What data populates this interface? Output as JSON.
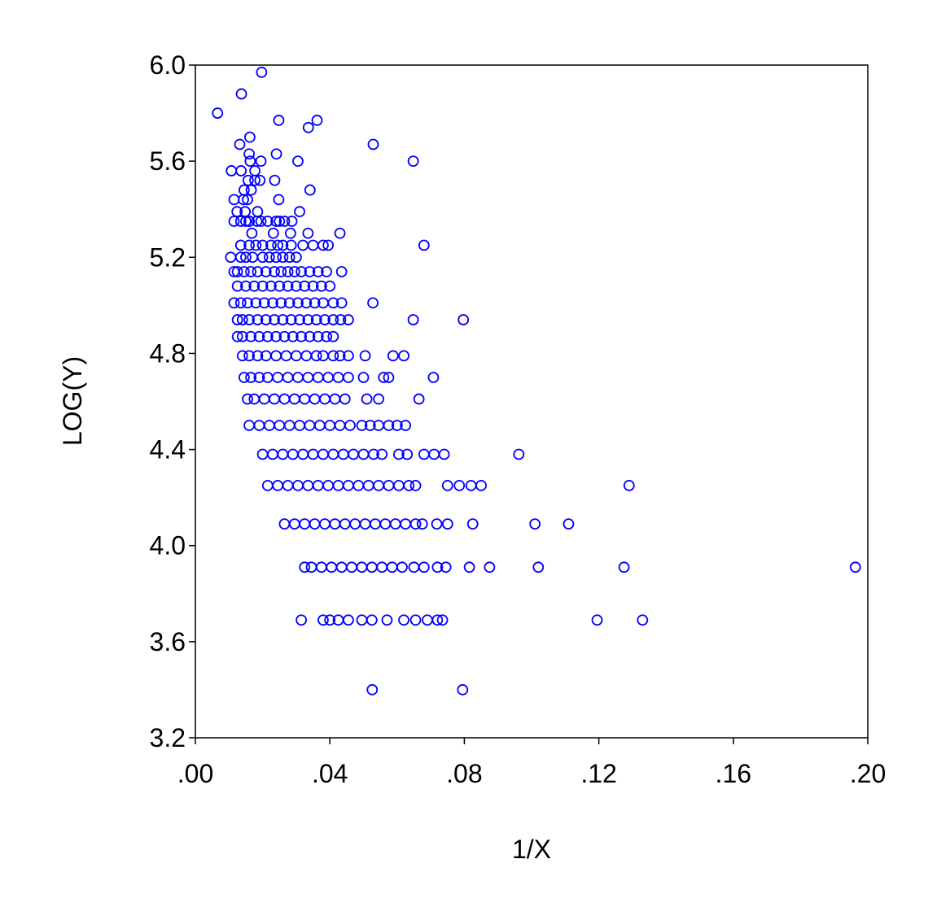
{
  "chart_data": {
    "type": "scatter",
    "title": "",
    "xlabel": "1/X",
    "ylabel": "LOG(Y)",
    "xlim": [
      0.0,
      0.2
    ],
    "ylim": [
      3.2,
      6.0
    ],
    "x_ticks": [
      0.0,
      0.04,
      0.08,
      0.12,
      0.16,
      0.2
    ],
    "x_tick_labels": [
      ".00",
      ".04",
      ".08",
      ".12",
      ".16",
      ".20"
    ],
    "y_ticks": [
      3.2,
      3.6,
      4.0,
      4.4,
      4.8,
      5.2,
      5.6,
      6.0
    ],
    "y_tick_labels": [
      "3.2",
      "3.6",
      "4.0",
      "4.4",
      "4.8",
      "5.2",
      "5.6",
      "6.0"
    ],
    "grid": false,
    "legend": "none",
    "marker": "open-circle",
    "marker_color": "#0000ff",
    "series": [
      {
        "x": [
          0.0066,
          0.0137,
          0.0197,
          0.0248,
          0.0336,
          0.0362,
          0.0529,
          0.0648,
          0.0132,
          0.016,
          0.0162,
          0.0241,
          0.0107,
          0.0136,
          0.0157,
          0.0177,
          0.0195,
          0.0305,
          0.0163,
          0.0177,
          0.0115,
          0.0145,
          0.0155,
          0.0192,
          0.0236,
          0.0341,
          0.0143,
          0.0166,
          0.0248,
          0.0124,
          0.0148,
          0.016,
          0.025,
          0.015,
          0.0185,
          0.031,
          0.0115,
          0.0135,
          0.016,
          0.0183,
          0.0195,
          0.0215,
          0.024,
          0.0265,
          0.0287,
          0.0168,
          0.0232,
          0.0283,
          0.0335,
          0.043,
          0.0135,
          0.016,
          0.018,
          0.02,
          0.0225,
          0.0245,
          0.026,
          0.0285,
          0.032,
          0.035,
          0.038,
          0.0395,
          0.068,
          0.0105,
          0.0135,
          0.015,
          0.017,
          0.02,
          0.022,
          0.024,
          0.026,
          0.028,
          0.03,
          0.0115,
          0.0125,
          0.0145,
          0.0165,
          0.0185,
          0.021,
          0.0235,
          0.0255,
          0.0275,
          0.0295,
          0.0315,
          0.034,
          0.0365,
          0.039,
          0.0435,
          0.0125,
          0.015,
          0.0175,
          0.02,
          0.0225,
          0.025,
          0.0275,
          0.03,
          0.0325,
          0.035,
          0.0375,
          0.04,
          0.0115,
          0.0135,
          0.0155,
          0.018,
          0.0205,
          0.023,
          0.0255,
          0.028,
          0.0305,
          0.033,
          0.0355,
          0.038,
          0.041,
          0.0435,
          0.0528,
          0.0125,
          0.014,
          0.016,
          0.0185,
          0.021,
          0.0235,
          0.026,
          0.0285,
          0.031,
          0.0335,
          0.036,
          0.0385,
          0.041,
          0.0432,
          0.0455,
          0.0648,
          0.0797,
          0.0125,
          0.014,
          0.0165,
          0.019,
          0.0215,
          0.024,
          0.0265,
          0.029,
          0.0315,
          0.034,
          0.0365,
          0.039,
          0.041,
          0.014,
          0.016,
          0.0185,
          0.021,
          0.024,
          0.027,
          0.03,
          0.033,
          0.036,
          0.038,
          0.041,
          0.043,
          0.0455,
          0.0505,
          0.0588,
          0.062,
          0.0145,
          0.0165,
          0.019,
          0.0215,
          0.0245,
          0.0275,
          0.0305,
          0.0335,
          0.0365,
          0.0395,
          0.0425,
          0.0455,
          0.05,
          0.056,
          0.0575,
          0.0708,
          0.0155,
          0.0175,
          0.0205,
          0.0235,
          0.0265,
          0.0295,
          0.0325,
          0.0355,
          0.0385,
          0.0415,
          0.0445,
          0.051,
          0.0545,
          0.0665,
          0.016,
          0.019,
          0.022,
          0.025,
          0.028,
          0.031,
          0.034,
          0.037,
          0.04,
          0.043,
          0.046,
          0.0495,
          0.052,
          0.0545,
          0.0575,
          0.06,
          0.0625,
          0.02,
          0.023,
          0.026,
          0.029,
          0.032,
          0.035,
          0.038,
          0.041,
          0.044,
          0.047,
          0.05,
          0.053,
          0.0555,
          0.0605,
          0.063,
          0.068,
          0.071,
          0.074,
          0.0962,
          0.0215,
          0.0245,
          0.0275,
          0.0305,
          0.0335,
          0.0365,
          0.0395,
          0.0425,
          0.0455,
          0.0485,
          0.0515,
          0.0545,
          0.0575,
          0.0605,
          0.0635,
          0.0655,
          0.075,
          0.0785,
          0.082,
          0.085,
          0.129,
          0.0265,
          0.0295,
          0.0325,
          0.0355,
          0.0385,
          0.0415,
          0.0445,
          0.0475,
          0.0505,
          0.0535,
          0.0565,
          0.0595,
          0.0625,
          0.0655,
          0.0675,
          0.0718,
          0.075,
          0.0825,
          0.101,
          0.111,
          0.0325,
          0.0345,
          0.0375,
          0.0405,
          0.0435,
          0.0465,
          0.0495,
          0.0525,
          0.0555,
          0.0585,
          0.0615,
          0.065,
          0.068,
          0.072,
          0.0745,
          0.0815,
          0.0875,
          0.102,
          0.1275,
          0.1963,
          0.0315,
          0.038,
          0.04,
          0.0425,
          0.0455,
          0.0495,
          0.0525,
          0.057,
          0.062,
          0.0655,
          0.069,
          0.072,
          0.0735,
          0.1195,
          0.133,
          0.0526,
          0.0795
        ],
        "y": [
          5.8,
          5.88,
          5.97,
          5.77,
          5.74,
          5.77,
          5.67,
          5.6,
          5.67,
          5.63,
          5.7,
          5.63,
          5.56,
          5.56,
          5.52,
          5.56,
          5.6,
          5.6,
          5.6,
          5.52,
          5.44,
          5.48,
          5.44,
          5.52,
          5.52,
          5.48,
          5.44,
          5.48,
          5.44,
          5.39,
          5.39,
          5.35,
          5.35,
          5.35,
          5.39,
          5.39,
          5.35,
          5.35,
          5.35,
          5.35,
          5.35,
          5.35,
          5.35,
          5.35,
          5.35,
          5.3,
          5.3,
          5.3,
          5.3,
          5.3,
          5.25,
          5.25,
          5.25,
          5.25,
          5.25,
          5.25,
          5.25,
          5.25,
          5.25,
          5.25,
          5.25,
          5.25,
          5.25,
          5.2,
          5.2,
          5.2,
          5.2,
          5.2,
          5.2,
          5.2,
          5.2,
          5.2,
          5.2,
          5.14,
          5.14,
          5.14,
          5.14,
          5.14,
          5.14,
          5.14,
          5.14,
          5.14,
          5.14,
          5.14,
          5.14,
          5.14,
          5.14,
          5.14,
          5.08,
          5.08,
          5.08,
          5.08,
          5.08,
          5.08,
          5.08,
          5.08,
          5.08,
          5.08,
          5.08,
          5.08,
          5.01,
          5.01,
          5.01,
          5.01,
          5.01,
          5.01,
          5.01,
          5.01,
          5.01,
          5.01,
          5.01,
          5.01,
          5.01,
          5.01,
          5.01,
          4.94,
          4.94,
          4.94,
          4.94,
          4.94,
          4.94,
          4.94,
          4.94,
          4.94,
          4.94,
          4.94,
          4.94,
          4.94,
          4.94,
          4.94,
          4.94,
          4.94,
          4.87,
          4.87,
          4.87,
          4.87,
          4.87,
          4.87,
          4.87,
          4.87,
          4.87,
          4.87,
          4.87,
          4.87,
          4.87,
          4.79,
          4.79,
          4.79,
          4.79,
          4.79,
          4.79,
          4.79,
          4.79,
          4.79,
          4.79,
          4.79,
          4.79,
          4.79,
          4.79,
          4.79,
          4.79,
          4.7,
          4.7,
          4.7,
          4.7,
          4.7,
          4.7,
          4.7,
          4.7,
          4.7,
          4.7,
          4.7,
          4.7,
          4.7,
          4.7,
          4.7,
          4.7,
          4.61,
          4.61,
          4.61,
          4.61,
          4.61,
          4.61,
          4.61,
          4.61,
          4.61,
          4.61,
          4.61,
          4.61,
          4.61,
          4.61,
          4.5,
          4.5,
          4.5,
          4.5,
          4.5,
          4.5,
          4.5,
          4.5,
          4.5,
          4.5,
          4.5,
          4.5,
          4.5,
          4.5,
          4.5,
          4.5,
          4.5,
          4.38,
          4.38,
          4.38,
          4.38,
          4.38,
          4.38,
          4.38,
          4.38,
          4.38,
          4.38,
          4.38,
          4.38,
          4.38,
          4.38,
          4.38,
          4.38,
          4.38,
          4.38,
          4.38,
          4.25,
          4.25,
          4.25,
          4.25,
          4.25,
          4.25,
          4.25,
          4.25,
          4.25,
          4.25,
          4.25,
          4.25,
          4.25,
          4.25,
          4.25,
          4.25,
          4.25,
          4.25,
          4.25,
          4.25,
          4.25,
          4.09,
          4.09,
          4.09,
          4.09,
          4.09,
          4.09,
          4.09,
          4.09,
          4.09,
          4.09,
          4.09,
          4.09,
          4.09,
          4.09,
          4.09,
          4.09,
          4.09,
          4.09,
          4.09,
          4.09,
          3.91,
          3.91,
          3.91,
          3.91,
          3.91,
          3.91,
          3.91,
          3.91,
          3.91,
          3.91,
          3.91,
          3.91,
          3.91,
          3.91,
          3.91,
          3.91,
          3.91,
          3.91,
          3.91,
          3.91,
          3.69,
          3.69,
          3.69,
          3.69,
          3.69,
          3.69,
          3.69,
          3.69,
          3.69,
          3.69,
          3.69,
          3.69,
          3.69,
          3.69,
          3.69,
          3.4,
          3.4
        ]
      }
    ]
  }
}
